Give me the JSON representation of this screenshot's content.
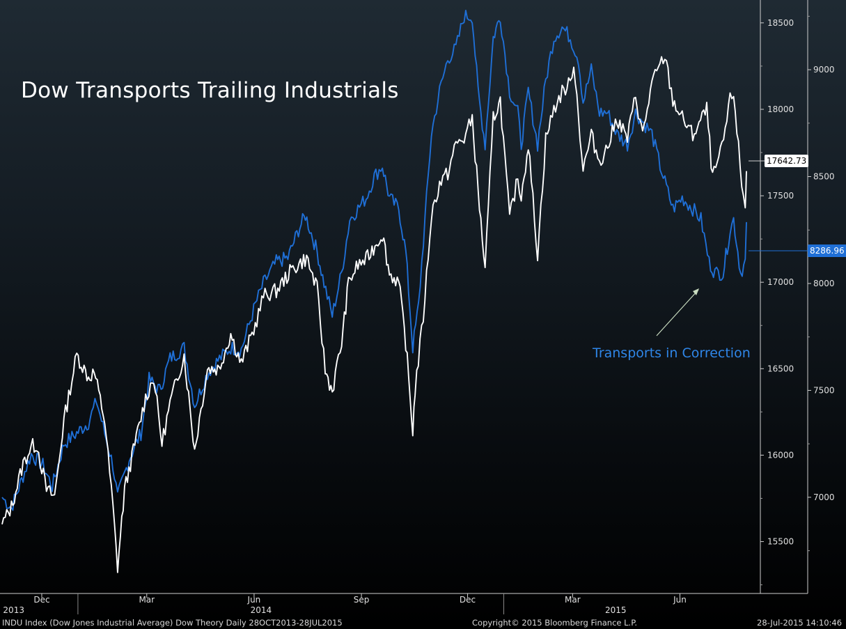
{
  "title": "Dow Transports Trailing Industrials",
  "annotation": "Transports in Correction",
  "footer": {
    "left": "INDU Index (Dow Jones Industrial Average) Dow Theory  Daily 28OCT2013-28JUL2015",
    "center": "Copyright© 2015 Bloomberg Finance L.P.",
    "right": "28-Jul-2015 14:10:46"
  },
  "last_values": {
    "industrials": "17642.73",
    "transports": "8286.96"
  },
  "colors": {
    "industrials": "#ffffff",
    "transports": "#1f6fd6",
    "annotation": "#2f86e8",
    "arrow": "#c9dcc0"
  },
  "chart_data": {
    "type": "line",
    "x_ticks": [
      {
        "label": "Dec",
        "date": "2013-12-01"
      },
      {
        "label": "Mar",
        "date": "2014-03-01"
      },
      {
        "label": "Jun",
        "date": "2014-06-01"
      },
      {
        "label": "Sep",
        "date": "2014-09-01"
      },
      {
        "label": "Dec",
        "date": "2014-12-01"
      },
      {
        "label": "Mar",
        "date": "2015-03-01"
      },
      {
        "label": "Jun",
        "date": "2015-06-01"
      }
    ],
    "year_labels": [
      {
        "label": "2013",
        "date": "2013-11-01"
      },
      {
        "label": "2014",
        "date": "2014-06-01"
      },
      {
        "label": "2015",
        "date": "2015-04-01"
      }
    ],
    "x_range": [
      "2013-10-28",
      "2015-07-28"
    ],
    "left_axis": {
      "ticks": [
        15500,
        16000,
        16500,
        17000,
        17500,
        18000,
        18500
      ],
      "ylim": [
        15200,
        18600
      ]
    },
    "right_axis": {
      "ticks": [
        7000,
        7500,
        8000,
        8500,
        9000
      ],
      "ylim": [
        6550,
        9300
      ]
    },
    "series": [
      {
        "name": "INDU Index (Dow Jones Industrial Average)",
        "axis": "left",
        "points": [
          [
            "2013-10-28",
            15600
          ],
          [
            "2013-11-05",
            15700
          ],
          [
            "2013-11-15",
            15950
          ],
          [
            "2013-11-22",
            16050
          ],
          [
            "2013-11-27",
            16060
          ],
          [
            "2013-12-05",
            15800
          ],
          [
            "2013-12-12",
            15760
          ],
          [
            "2013-12-20",
            16200
          ],
          [
            "2013-12-31",
            16580
          ],
          [
            "2014-01-10",
            16450
          ],
          [
            "2014-01-15",
            16480
          ],
          [
            "2014-01-24",
            16200
          ],
          [
            "2014-01-31",
            15700
          ],
          [
            "2014-02-04",
            15350
          ],
          [
            "2014-02-10",
            15800
          ],
          [
            "2014-02-20",
            16100
          ],
          [
            "2014-02-28",
            16330
          ],
          [
            "2014-03-07",
            16450
          ],
          [
            "2014-03-14",
            16070
          ],
          [
            "2014-03-21",
            16300
          ],
          [
            "2014-04-02",
            16580
          ],
          [
            "2014-04-11",
            16030
          ],
          [
            "2014-04-22",
            16500
          ],
          [
            "2014-05-02",
            16500
          ],
          [
            "2014-05-12",
            16700
          ],
          [
            "2014-05-21",
            16530
          ],
          [
            "2014-06-02",
            16750
          ],
          [
            "2014-06-09",
            16920
          ],
          [
            "2014-06-20",
            16950
          ],
          [
            "2014-07-03",
            17070
          ],
          [
            "2014-07-16",
            17140
          ],
          [
            "2014-07-25",
            16960
          ],
          [
            "2014-08-01",
            16490
          ],
          [
            "2014-08-07",
            16370
          ],
          [
            "2014-08-15",
            16650
          ],
          [
            "2014-08-21",
            17000
          ],
          [
            "2014-08-29",
            17100
          ],
          [
            "2014-09-05",
            17130
          ],
          [
            "2014-09-19",
            17280
          ],
          [
            "2014-09-25",
            17050
          ],
          [
            "2014-10-03",
            17000
          ],
          [
            "2014-10-09",
            16650
          ],
          [
            "2014-10-15",
            16140
          ],
          [
            "2014-10-17",
            16380
          ],
          [
            "2014-10-24",
            16800
          ],
          [
            "2014-10-31",
            17390
          ],
          [
            "2014-11-07",
            17570
          ],
          [
            "2014-11-14",
            17630
          ],
          [
            "2014-11-21",
            17800
          ],
          [
            "2014-11-28",
            17830
          ],
          [
            "2014-12-05",
            17950
          ],
          [
            "2014-12-10",
            17530
          ],
          [
            "2014-12-16",
            17070
          ],
          [
            "2014-12-23",
            17950
          ],
          [
            "2014-12-29",
            18050
          ],
          [
            "2015-01-06",
            17370
          ],
          [
            "2015-01-13",
            17600
          ],
          [
            "2015-01-16",
            17500
          ],
          [
            "2015-01-22",
            17800
          ],
          [
            "2015-01-30",
            17160
          ],
          [
            "2015-02-06",
            17830
          ],
          [
            "2015-02-13",
            18000
          ],
          [
            "2015-02-20",
            18100
          ],
          [
            "2015-02-27",
            18150
          ],
          [
            "2015-03-02",
            18280
          ],
          [
            "2015-03-10",
            17650
          ],
          [
            "2015-03-17",
            17850
          ],
          [
            "2015-03-24",
            17700
          ],
          [
            "2015-03-31",
            17780
          ],
          [
            "2015-04-08",
            17950
          ],
          [
            "2015-04-17",
            17830
          ],
          [
            "2015-04-24",
            18080
          ],
          [
            "2015-04-30",
            17850
          ],
          [
            "2015-05-08",
            18150
          ],
          [
            "2015-05-19",
            18310
          ],
          [
            "2015-05-26",
            18050
          ],
          [
            "2015-06-03",
            17950
          ],
          [
            "2015-06-12",
            17850
          ],
          [
            "2015-06-16",
            17900
          ],
          [
            "2015-06-24",
            18000
          ],
          [
            "2015-06-29",
            17600
          ],
          [
            "2015-07-07",
            17770
          ],
          [
            "2015-07-14",
            18050
          ],
          [
            "2015-07-17",
            18100
          ],
          [
            "2015-07-24",
            17560
          ],
          [
            "2015-07-27",
            17440
          ],
          [
            "2015-07-28",
            17642.73
          ]
        ]
      },
      {
        "name": "Dow Jones Transportation Average",
        "axis": "right",
        "points": [
          [
            "2013-10-28",
            7000
          ],
          [
            "2013-11-05",
            6950
          ],
          [
            "2013-11-15",
            7100
          ],
          [
            "2013-11-22",
            7200
          ],
          [
            "2013-12-02",
            7150
          ],
          [
            "2013-12-10",
            7050
          ],
          [
            "2013-12-20",
            7250
          ],
          [
            "2013-12-31",
            7300
          ],
          [
            "2014-01-10",
            7350
          ],
          [
            "2014-01-17",
            7450
          ],
          [
            "2014-01-24",
            7300
          ],
          [
            "2014-01-31",
            7150
          ],
          [
            "2014-02-04",
            7000
          ],
          [
            "2014-02-14",
            7180
          ],
          [
            "2014-02-24",
            7300
          ],
          [
            "2014-03-03",
            7550
          ],
          [
            "2014-03-12",
            7500
          ],
          [
            "2014-03-21",
            7650
          ],
          [
            "2014-04-02",
            7700
          ],
          [
            "2014-04-11",
            7430
          ],
          [
            "2014-04-22",
            7580
          ],
          [
            "2014-05-01",
            7640
          ],
          [
            "2014-05-12",
            7700
          ],
          [
            "2014-05-21",
            7690
          ],
          [
            "2014-06-02",
            7900
          ],
          [
            "2014-06-09",
            8000
          ],
          [
            "2014-06-20",
            8100
          ],
          [
            "2014-06-30",
            8120
          ],
          [
            "2014-07-09",
            8250
          ],
          [
            "2014-07-15",
            8320
          ],
          [
            "2014-07-25",
            8150
          ],
          [
            "2014-07-31",
            8000
          ],
          [
            "2014-08-07",
            7850
          ],
          [
            "2014-08-15",
            8050
          ],
          [
            "2014-08-22",
            8300
          ],
          [
            "2014-08-29",
            8350
          ],
          [
            "2014-09-05",
            8400
          ],
          [
            "2014-09-12",
            8500
          ],
          [
            "2014-09-19",
            8550
          ],
          [
            "2014-09-25",
            8400
          ],
          [
            "2014-10-03",
            8350
          ],
          [
            "2014-10-09",
            8150
          ],
          [
            "2014-10-15",
            7700
          ],
          [
            "2014-10-20",
            7900
          ],
          [
            "2014-10-31",
            8700
          ],
          [
            "2014-11-07",
            8900
          ],
          [
            "2014-11-14",
            9050
          ],
          [
            "2014-11-21",
            9100
          ],
          [
            "2014-11-28",
            9250
          ],
          [
            "2014-12-05",
            9250
          ],
          [
            "2014-12-10",
            8900
          ],
          [
            "2014-12-16",
            8650
          ],
          [
            "2014-12-23",
            9150
          ],
          [
            "2014-12-29",
            9250
          ],
          [
            "2015-01-06",
            8900
          ],
          [
            "2015-01-13",
            8800
          ],
          [
            "2015-01-16",
            8650
          ],
          [
            "2015-01-22",
            8900
          ],
          [
            "2015-01-30",
            8650
          ],
          [
            "2015-02-06",
            8950
          ],
          [
            "2015-02-13",
            9150
          ],
          [
            "2015-02-20",
            9200
          ],
          [
            "2015-02-27",
            9150
          ],
          [
            "2015-03-06",
            9050
          ],
          [
            "2015-03-10",
            8850
          ],
          [
            "2015-03-17",
            9000
          ],
          [
            "2015-03-24",
            8800
          ],
          [
            "2015-03-31",
            8800
          ],
          [
            "2015-04-08",
            8700
          ],
          [
            "2015-04-17",
            8650
          ],
          [
            "2015-04-24",
            8800
          ],
          [
            "2015-05-01",
            8750
          ],
          [
            "2015-05-08",
            8700
          ],
          [
            "2015-05-15",
            8550
          ],
          [
            "2015-05-26",
            8350
          ],
          [
            "2015-06-03",
            8400
          ],
          [
            "2015-06-12",
            8350
          ],
          [
            "2015-06-19",
            8300
          ],
          [
            "2015-06-26",
            8100
          ],
          [
            "2015-07-01",
            8050
          ],
          [
            "2015-07-08",
            8050
          ],
          [
            "2015-07-14",
            8250
          ],
          [
            "2015-07-17",
            8300
          ],
          [
            "2015-07-23",
            8050
          ],
          [
            "2015-07-27",
            8100
          ],
          [
            "2015-07-28",
            8286.96
          ]
        ]
      }
    ]
  }
}
